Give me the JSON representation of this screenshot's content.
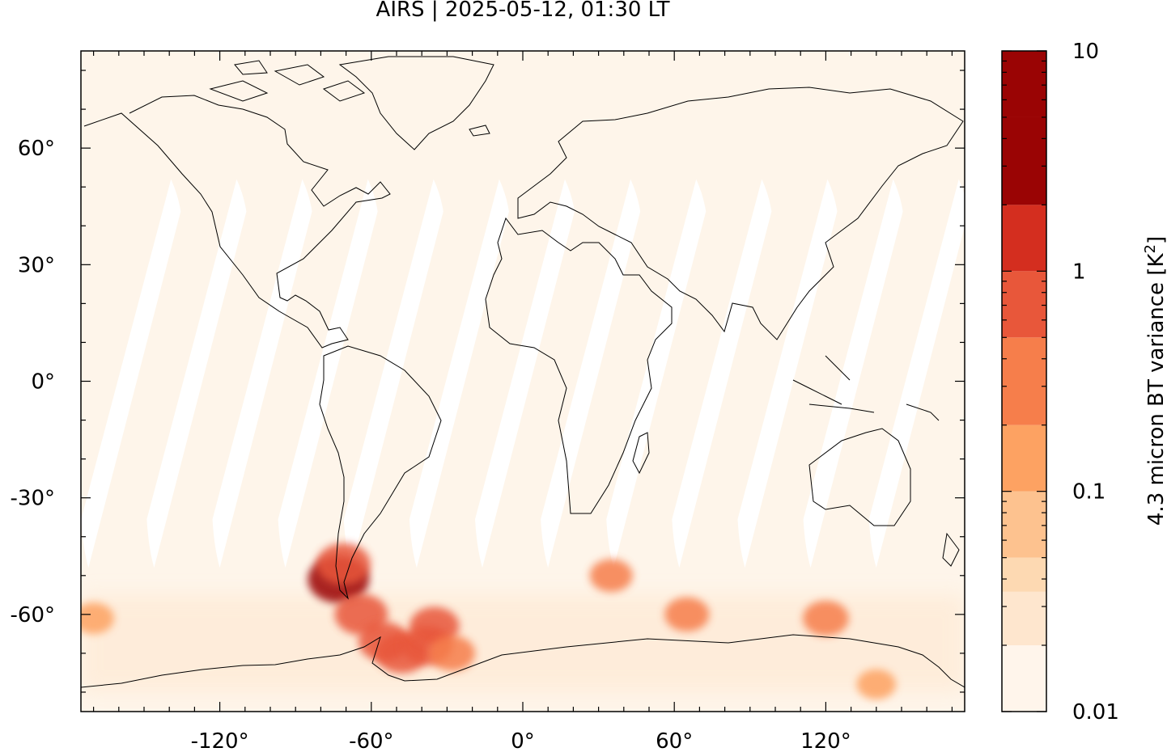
{
  "chart_data": {
    "type": "heatmap",
    "title": "AIRS | 2025-05-12, 01:30 LT",
    "x_ticks": [
      -120,
      -60,
      0,
      60,
      120
    ],
    "x_tick_labels": [
      "-120°",
      "-60°",
      "0°",
      "60°",
      "120°"
    ],
    "y_ticks": [
      60,
      30,
      0,
      -30,
      -60
    ],
    "y_tick_labels": [
      "60°",
      "30°",
      "0°",
      "-30°",
      "-60°"
    ],
    "xlim": [
      -175,
      175
    ],
    "ylim": [
      -85,
      85
    ],
    "colorbar": {
      "label_prefix": "4.3 micron BT variance [K",
      "label_exp": "2",
      "label_suffix": "]",
      "scale": "log",
      "range": [
        0.01,
        10
      ],
      "tick_values": [
        10,
        1,
        0.1,
        0.01
      ],
      "tick_labels": [
        "10",
        "1",
        "0.1",
        "0.01"
      ],
      "levels": [
        0.01,
        0.02,
        0.035,
        0.05,
        0.1,
        0.2,
        0.5,
        1,
        2,
        5,
        10
      ],
      "colors": [
        "#fff5eb",
        "#fee6ce",
        "#fdd9b2",
        "#fdc28f",
        "#fda262",
        "#f67e4b",
        "#e8573a",
        "#d42e1f",
        "#9a0404",
        "#9a0404"
      ]
    },
    "background_value": 0.015,
    "swath_gaps_lon_at_equator": [
      -156,
      -130,
      -104,
      -78,
      -52,
      -26,
      0,
      26,
      52,
      78,
      104,
      130,
      156
    ],
    "hotspots": [
      {
        "lon": -73,
        "lat": -51,
        "value": 2.5
      },
      {
        "lon": -71,
        "lat": -47,
        "value": 0.9
      },
      {
        "lon": -64,
        "lat": -60,
        "value": 0.8
      },
      {
        "lon": -55,
        "lat": -67,
        "value": 0.6
      },
      {
        "lon": -48,
        "lat": -70,
        "value": 0.7
      },
      {
        "lon": -38,
        "lat": -68,
        "value": 0.6
      },
      {
        "lon": -35,
        "lat": -63,
        "value": 0.5
      },
      {
        "lon": -28,
        "lat": -70,
        "value": 0.3
      },
      {
        "lon": 35,
        "lat": -50,
        "value": 0.2
      },
      {
        "lon": 65,
        "lat": -60,
        "value": 0.25
      },
      {
        "lon": 120,
        "lat": -61,
        "value": 0.3
      },
      {
        "lon": -170,
        "lat": -61,
        "value": 0.15
      },
      {
        "lon": 140,
        "lat": -78,
        "value": 0.12
      }
    ]
  }
}
